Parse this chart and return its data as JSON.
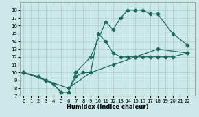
{
  "xlabel": "Humidex (Indice chaleur)",
  "xlim": [
    -0.5,
    23
  ],
  "ylim": [
    7,
    19
  ],
  "xticks": [
    0,
    1,
    2,
    3,
    4,
    5,
    6,
    7,
    8,
    9,
    10,
    11,
    12,
    13,
    14,
    15,
    16,
    17,
    18,
    19,
    20,
    21,
    22
  ],
  "yticks": [
    7,
    8,
    9,
    10,
    11,
    12,
    13,
    14,
    15,
    16,
    17,
    18
  ],
  "bg_color": "#cce8e8",
  "line_color": "#1a6b5a",
  "grid_color": "#aacccc",
  "line1_x": [
    0,
    2,
    3,
    4,
    5,
    6,
    7,
    9,
    11,
    12,
    13,
    14,
    15,
    16,
    17,
    18,
    20,
    22
  ],
  "line1_y": [
    10,
    9.5,
    9,
    8.5,
    7.5,
    7.5,
    10,
    12,
    16.5,
    15.5,
    17,
    18,
    18,
    18,
    17.5,
    17.5,
    15,
    13.5
  ],
  "line2_x": [
    0,
    3,
    4,
    5,
    6,
    7,
    8,
    9,
    10,
    11,
    12,
    13,
    14,
    15,
    16,
    17,
    18,
    19,
    20,
    22
  ],
  "line2_y": [
    10,
    9,
    8.5,
    7.5,
    7.5,
    9.5,
    10,
    10,
    15,
    14,
    12.5,
    12,
    12,
    12,
    12,
    12,
    12,
    12,
    12,
    12.5
  ],
  "line3_x": [
    0,
    3,
    6,
    9,
    12,
    15,
    18,
    22
  ],
  "line3_y": [
    10,
    9,
    8,
    10,
    11,
    12,
    13,
    12.5
  ]
}
